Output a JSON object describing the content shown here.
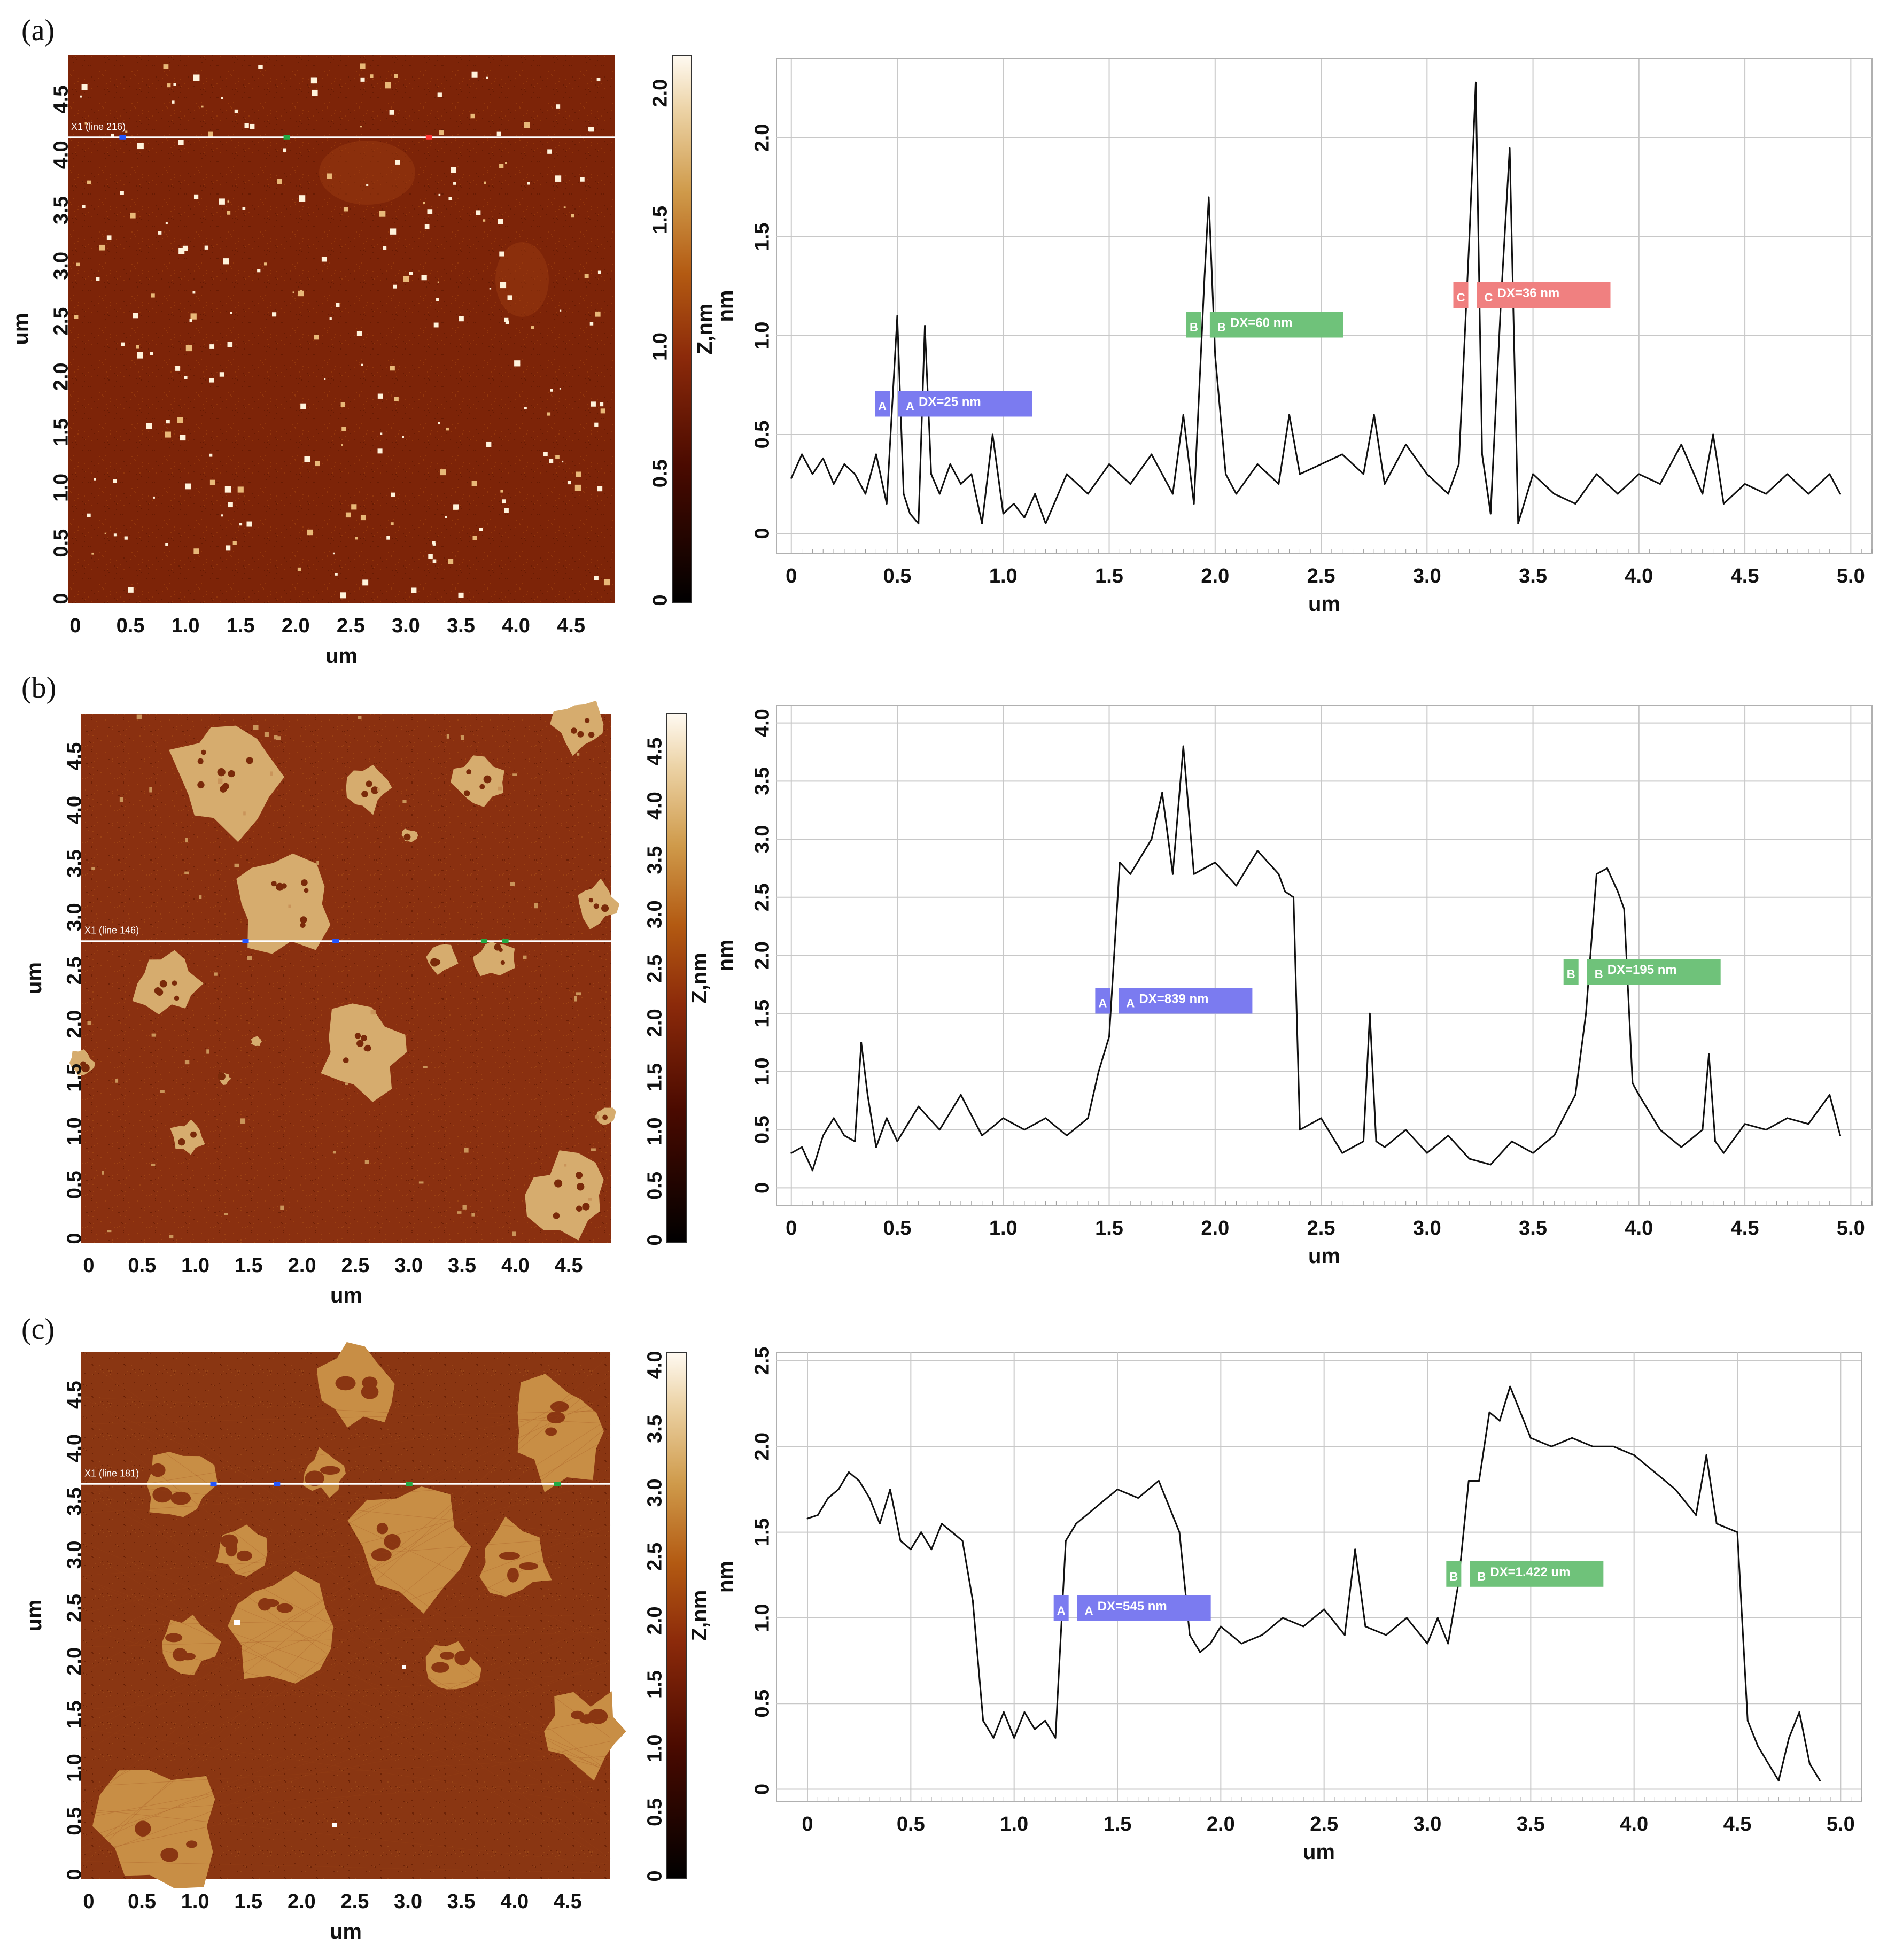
{
  "colors": {
    "marker_A": "#7b7bf0",
    "marker_B": "#6fc27a",
    "marker_C": "#f08080",
    "grid": "#c8c8c8",
    "trace": "#111111",
    "afm_dark": "#0a0000",
    "afm_mid": "#8c2a0a",
    "afm_light": "#c99a4a",
    "afm_bright": "#fff7ea"
  },
  "panels": [
    {
      "label": "(a)",
      "scan_label": "X1 (line 216)",
      "image_x_ticks": [
        "0",
        "0.5",
        "1.0",
        "1.5",
        "2.0",
        "2.5",
        "3.0",
        "3.5",
        "4.0",
        "4.5"
      ],
      "image_y_ticks": [
        "0",
        "0.5",
        "1.0",
        "1.5",
        "2.0",
        "2.5",
        "3.0",
        "3.5",
        "4.0",
        "4.5"
      ],
      "image_xlabel": "um",
      "image_ylabel": "um",
      "colorbar_ticks": [
        "0",
        "0.5",
        "1.0",
        "1.5",
        "2.0"
      ],
      "colorbar_label": "Z,nm",
      "markers": [
        {
          "letter": "A",
          "text": "DX=25 nm",
          "color": "#7b7bf0"
        },
        {
          "letter": "B",
          "text": "DX=60 nm",
          "color": "#6fc27a"
        },
        {
          "letter": "C",
          "text": "DX=36 nm",
          "color": "#f08080"
        }
      ]
    },
    {
      "label": "(b)",
      "scan_label": "X1 (line 146)",
      "image_x_ticks": [
        "0",
        "0.5",
        "1.0",
        "1.5",
        "2.0",
        "2.5",
        "3.0",
        "3.5",
        "4.0",
        "4.5"
      ],
      "image_y_ticks": [
        "0",
        "0.5",
        "1.0",
        "1.5",
        "2.0",
        "2.5",
        "3.0",
        "3.5",
        "4.0",
        "4.5"
      ],
      "image_xlabel": "um",
      "image_ylabel": "um",
      "colorbar_ticks": [
        "0",
        "0.5",
        "1.0",
        "1.5",
        "2.0",
        "2.5",
        "3.0",
        "3.5",
        "4.0",
        "4.5"
      ],
      "colorbar_label": "Z,nm",
      "markers": [
        {
          "letter": "A",
          "text": "DX=839 nm",
          "color": "#7b7bf0"
        },
        {
          "letter": "B",
          "text": "DX=195 nm",
          "color": "#6fc27a"
        }
      ]
    },
    {
      "label": "(c)",
      "scan_label": "X1 (line 181)",
      "image_x_ticks": [
        "0",
        "0.5",
        "1.0",
        "1.5",
        "2.0",
        "2.5",
        "3.0",
        "3.5",
        "4.0",
        "4.5"
      ],
      "image_y_ticks": [
        "0",
        "0.5",
        "1.0",
        "1.5",
        "2.0",
        "2.5",
        "3.0",
        "3.5",
        "4.0",
        "4.5"
      ],
      "image_xlabel": "um",
      "image_ylabel": "um",
      "colorbar_ticks": [
        "0",
        "0.5",
        "1.0",
        "1.5",
        "2.0",
        "2.5",
        "3.0",
        "3.5",
        "4.0"
      ],
      "colorbar_label": "Z,nm",
      "markers": [
        {
          "letter": "A",
          "text": "DX=545 nm",
          "color": "#7b7bf0"
        },
        {
          "letter": "B",
          "text": "DX=1.422 um",
          "color": "#6fc27a"
        }
      ]
    }
  ],
  "chart_data": [
    {
      "type": "line",
      "panel": "(a)",
      "xlabel": "um",
      "ylabel": "nm",
      "xlim": [
        -0.07,
        5.1
      ],
      "ylim": [
        -0.1,
        2.4
      ],
      "x_ticks": [
        0,
        0.5,
        1.0,
        1.5,
        2.0,
        2.5,
        3.0,
        3.5,
        4.0,
        4.5,
        5.0
      ],
      "x_tick_labels": [
        "0",
        "0.5",
        "1.0",
        "1.5",
        "2.0",
        "2.5",
        "3.0",
        "3.5",
        "4.0",
        "4.5",
        "5.0"
      ],
      "y_ticks": [
        0,
        0.5,
        1.0,
        1.5,
        2.0
      ],
      "y_tick_labels": [
        "0",
        "0.5",
        "1.0",
        "1.5",
        "2.0"
      ],
      "grid": true,
      "series": [
        {
          "x": [
            0,
            0.05,
            0.1,
            0.15,
            0.2,
            0.25,
            0.3,
            0.35,
            0.4,
            0.45,
            0.5,
            0.53,
            0.56,
            0.6,
            0.63,
            0.66,
            0.7,
            0.75,
            0.8,
            0.85,
            0.9,
            0.95,
            1.0,
            1.05,
            1.1,
            1.15,
            1.2,
            1.3,
            1.4,
            1.5,
            1.6,
            1.7,
            1.8,
            1.85,
            1.9,
            1.95,
            1.97,
            2.0,
            2.05,
            2.1,
            2.2,
            2.3,
            2.35,
            2.4,
            2.5,
            2.6,
            2.7,
            2.75,
            2.8,
            2.9,
            3.0,
            3.1,
            3.15,
            3.2,
            3.23,
            3.26,
            3.3,
            3.35,
            3.39,
            3.43,
            3.5,
            3.6,
            3.7,
            3.8,
            3.9,
            4.0,
            4.1,
            4.2,
            4.3,
            4.35,
            4.4,
            4.5,
            4.6,
            4.7,
            4.8,
            4.9,
            4.95
          ],
          "y": [
            0.28,
            0.4,
            0.3,
            0.38,
            0.25,
            0.35,
            0.3,
            0.2,
            0.4,
            0.15,
            1.1,
            0.2,
            0.1,
            0.05,
            1.05,
            0.3,
            0.2,
            0.35,
            0.25,
            0.3,
            0.05,
            0.5,
            0.1,
            0.15,
            0.08,
            0.2,
            0.05,
            0.3,
            0.2,
            0.35,
            0.25,
            0.4,
            0.2,
            0.6,
            0.15,
            1.3,
            1.7,
            0.9,
            0.3,
            0.2,
            0.35,
            0.25,
            0.6,
            0.3,
            0.35,
            0.4,
            0.3,
            0.6,
            0.25,
            0.45,
            0.3,
            0.2,
            0.35,
            1.5,
            2.28,
            0.4,
            0.1,
            1.2,
            1.95,
            0.05,
            0.3,
            0.2,
            0.15,
            0.3,
            0.2,
            0.3,
            0.25,
            0.45,
            0.2,
            0.5,
            0.15,
            0.25,
            0.2,
            0.3,
            0.2,
            0.3,
            0.2
          ]
        }
      ],
      "annotations": [
        {
          "letter": "A",
          "text": "DX=25 nm",
          "x": 0.5,
          "y": 0.65
        },
        {
          "letter": "B",
          "text": "DX=60 nm",
          "x": 1.97,
          "y": 1.05
        },
        {
          "letter": "C",
          "text": "DX=36 nm",
          "x": 3.23,
          "y": 1.2
        }
      ]
    },
    {
      "type": "line",
      "panel": "(b)",
      "xlabel": "um",
      "ylabel": "nm",
      "xlim": [
        -0.07,
        5.1
      ],
      "ylim": [
        -0.15,
        4.15
      ],
      "x_ticks": [
        0,
        0.5,
        1.0,
        1.5,
        2.0,
        2.5,
        3.0,
        3.5,
        4.0,
        4.5,
        5.0
      ],
      "x_tick_labels": [
        "0",
        "0.5",
        "1.0",
        "1.5",
        "2.0",
        "2.5",
        "3.0",
        "3.5",
        "4.0",
        "4.5",
        "5.0"
      ],
      "y_ticks": [
        0,
        0.5,
        1.0,
        1.5,
        2.0,
        2.5,
        3.0,
        3.5,
        4.0
      ],
      "y_tick_labels": [
        "0",
        "0.5",
        "1.0",
        "1.5",
        "2.0",
        "2.5",
        "3.0",
        "3.5",
        "4.0"
      ],
      "grid": true,
      "series": [
        {
          "x": [
            0,
            0.05,
            0.1,
            0.15,
            0.2,
            0.25,
            0.3,
            0.33,
            0.36,
            0.4,
            0.45,
            0.5,
            0.55,
            0.6,
            0.7,
            0.8,
            0.9,
            1.0,
            1.1,
            1.2,
            1.3,
            1.4,
            1.45,
            1.5,
            1.55,
            1.6,
            1.7,
            1.75,
            1.8,
            1.85,
            1.9,
            2.0,
            2.1,
            2.2,
            2.3,
            2.33,
            2.37,
            2.4,
            2.5,
            2.6,
            2.7,
            2.73,
            2.76,
            2.8,
            2.9,
            3.0,
            3.1,
            3.2,
            3.3,
            3.4,
            3.5,
            3.6,
            3.7,
            3.75,
            3.8,
            3.85,
            3.9,
            3.93,
            3.97,
            4.0,
            4.1,
            4.2,
            4.3,
            4.33,
            4.36,
            4.4,
            4.5,
            4.6,
            4.7,
            4.8,
            4.9,
            4.95
          ],
          "y": [
            0.3,
            0.35,
            0.15,
            0.45,
            0.6,
            0.45,
            0.4,
            1.25,
            0.8,
            0.35,
            0.6,
            0.4,
            0.55,
            0.7,
            0.5,
            0.8,
            0.45,
            0.6,
            0.5,
            0.6,
            0.45,
            0.6,
            1.0,
            1.3,
            2.8,
            2.7,
            3.0,
            3.4,
            2.7,
            3.8,
            2.7,
            2.8,
            2.6,
            2.9,
            2.7,
            2.55,
            2.5,
            0.5,
            0.6,
            0.3,
            0.4,
            1.5,
            0.4,
            0.35,
            0.5,
            0.3,
            0.45,
            0.25,
            0.2,
            0.4,
            0.3,
            0.45,
            0.8,
            1.5,
            2.7,
            2.75,
            2.55,
            2.4,
            0.9,
            0.8,
            0.5,
            0.35,
            0.5,
            1.15,
            0.4,
            0.3,
            0.55,
            0.5,
            0.6,
            0.55,
            0.8,
            0.45
          ]
        }
      ],
      "annotations": [
        {
          "letter": "A",
          "text": "DX=839 nm",
          "x": 1.54,
          "y": 1.6
        },
        {
          "letter": "B",
          "text": "DX=195 nm",
          "x": 3.75,
          "y": 1.85
        }
      ]
    },
    {
      "type": "line",
      "panel": "(c)",
      "xlabel": "um",
      "ylabel": "nm",
      "xlim": [
        -0.15,
        5.1
      ],
      "ylim": [
        -0.07,
        2.55
      ],
      "x_ticks": [
        0,
        0.5,
        1.0,
        1.5,
        2.0,
        2.5,
        3.0,
        3.5,
        4.0,
        4.5,
        5.0
      ],
      "x_tick_labels": [
        "0",
        "0.5",
        "1.0",
        "1.5",
        "2.0",
        "2.5",
        "3.0",
        "3.5",
        "4.0",
        "4.5",
        "5.0"
      ],
      "y_ticks": [
        0,
        0.5,
        1.0,
        1.5,
        2.0,
        2.5
      ],
      "y_tick_labels": [
        "0",
        "0.5",
        "1.0",
        "1.5",
        "2.0",
        "2.5"
      ],
      "grid": true,
      "series": [
        {
          "x": [
            0,
            0.05,
            0.1,
            0.15,
            0.2,
            0.25,
            0.3,
            0.35,
            0.4,
            0.45,
            0.5,
            0.55,
            0.6,
            0.65,
            0.7,
            0.75,
            0.8,
            0.85,
            0.9,
            0.95,
            1.0,
            1.05,
            1.1,
            1.15,
            1.2,
            1.25,
            1.3,
            1.35,
            1.4,
            1.5,
            1.6,
            1.7,
            1.8,
            1.85,
            1.9,
            1.95,
            2.0,
            2.1,
            2.2,
            2.3,
            2.4,
            2.5,
            2.6,
            2.65,
            2.7,
            2.8,
            2.9,
            3.0,
            3.05,
            3.1,
            3.15,
            3.2,
            3.25,
            3.3,
            3.35,
            3.4,
            3.5,
            3.6,
            3.7,
            3.8,
            3.9,
            4.0,
            4.1,
            4.2,
            4.3,
            4.35,
            4.4,
            4.5,
            4.55,
            4.6,
            4.65,
            4.7,
            4.75,
            4.8,
            4.85,
            4.9
          ],
          "y": [
            1.58,
            1.6,
            1.7,
            1.75,
            1.85,
            1.8,
            1.7,
            1.55,
            1.75,
            1.45,
            1.4,
            1.5,
            1.4,
            1.55,
            1.5,
            1.45,
            1.1,
            0.4,
            0.3,
            0.45,
            0.3,
            0.45,
            0.35,
            0.4,
            0.3,
            1.45,
            1.55,
            1.6,
            1.65,
            1.75,
            1.7,
            1.8,
            1.5,
            0.9,
            0.8,
            0.85,
            0.95,
            0.85,
            0.9,
            1.0,
            0.95,
            1.05,
            0.9,
            1.4,
            0.95,
            0.9,
            1.0,
            0.85,
            1.0,
            0.85,
            1.2,
            1.8,
            1.8,
            2.2,
            2.15,
            2.35,
            2.05,
            2.0,
            2.05,
            2.0,
            2.0,
            1.95,
            1.85,
            1.75,
            1.6,
            1.95,
            1.55,
            1.5,
            0.4,
            0.25,
            0.15,
            0.05,
            0.3,
            0.45,
            0.15,
            0.05
          ]
        }
      ],
      "annotations": [
        {
          "letter": "A",
          "text": "DX=545 nm",
          "x": 1.3,
          "y": 1.05
        },
        {
          "letter": "B",
          "text": "DX=1.422 um",
          "x": 3.2,
          "y": 1.25
        }
      ]
    }
  ]
}
